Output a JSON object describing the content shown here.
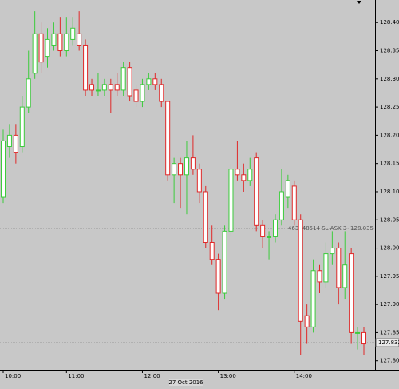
{
  "chart_data": {
    "type": "candlestick",
    "categories": [
      "10:00",
      null,
      null,
      null,
      null,
      null,
      null,
      null,
      null,
      null,
      "11:00",
      null,
      null,
      null,
      null,
      null,
      null,
      null,
      null,
      null,
      null,
      null,
      "12:00",
      null,
      null,
      null,
      null,
      null,
      null,
      null,
      null,
      null,
      null,
      null,
      "13:00",
      null,
      null,
      null,
      null,
      null,
      null,
      null,
      null,
      null,
      null,
      null,
      "14:00",
      null,
      null,
      null,
      null,
      null,
      null,
      null,
      null,
      null,
      null,
      null
    ],
    "open": [
      128.09,
      128.18,
      128.2,
      128.18,
      128.25,
      128.31,
      128.38,
      128.34,
      128.36,
      128.38,
      128.35,
      128.37,
      128.38,
      128.36,
      128.29,
      128.28,
      128.28,
      128.29,
      128.29,
      128.28,
      128.32,
      128.28,
      128.26,
      128.29,
      128.3,
      128.29,
      128.26,
      128.13,
      128.15,
      128.13,
      128.16,
      128.14,
      128.1,
      128.01,
      127.98,
      127.92,
      128.03,
      128.14,
      128.13,
      128.12,
      128.16,
      128.04,
      128.02,
      128.02,
      128.05,
      128.09,
      128.11,
      128.05,
      127.88,
      127.86,
      127.96,
      127.94,
      127.99,
      128.0,
      127.93,
      127.99,
      127.85,
      127.85
    ],
    "high": [
      128.21,
      128.22,
      128.22,
      128.27,
      128.35,
      128.42,
      128.4,
      128.39,
      128.4,
      128.41,
      128.41,
      128.41,
      128.42,
      128.37,
      128.3,
      128.31,
      128.3,
      128.3,
      128.31,
      128.33,
      128.33,
      128.29,
      128.3,
      128.31,
      128.31,
      128.3,
      128.26,
      128.16,
      128.16,
      128.19,
      128.2,
      128.15,
      128.11,
      128.04,
      127.99,
      128.04,
      128.15,
      128.19,
      128.15,
      128.16,
      128.17,
      128.05,
      128.03,
      128.06,
      128.14,
      128.13,
      128.12,
      128.06,
      127.9,
      127.98,
      127.97,
      128.01,
      128.03,
      128.01,
      128.03,
      128.0,
      127.86,
      127.86
    ],
    "low": [
      128.08,
      128.16,
      128.15,
      128.17,
      128.24,
      128.3,
      128.31,
      128.32,
      128.35,
      128.34,
      128.34,
      128.36,
      128.35,
      128.27,
      128.27,
      128.27,
      128.27,
      128.24,
      128.27,
      128.27,
      128.26,
      128.25,
      128.25,
      128.28,
      128.28,
      128.25,
      128.12,
      128.08,
      128.07,
      128.06,
      128.13,
      128.08,
      128.0,
      127.97,
      127.89,
      127.91,
      128.02,
      128.12,
      128.1,
      128.11,
      128.03,
      128.0,
      127.98,
      128.01,
      128.04,
      128.07,
      128.04,
      127.81,
      127.83,
      127.85,
      127.92,
      127.93,
      127.97,
      127.9,
      127.91,
      127.83,
      127.82,
      127.81
    ],
    "close": [
      128.19,
      128.2,
      128.17,
      128.25,
      128.3,
      128.38,
      128.33,
      128.37,
      128.38,
      128.35,
      128.38,
      128.39,
      128.36,
      128.28,
      128.28,
      128.28,
      128.29,
      128.28,
      128.28,
      128.32,
      128.27,
      128.26,
      128.29,
      128.3,
      128.29,
      128.26,
      128.13,
      128.15,
      128.13,
      128.16,
      128.14,
      128.1,
      128.01,
      127.98,
      127.92,
      128.03,
      128.14,
      128.13,
      128.12,
      128.14,
      128.04,
      128.02,
      128.02,
      128.05,
      128.1,
      128.12,
      128.05,
      127.87,
      127.86,
      127.96,
      127.94,
      127.99,
      128.0,
      127.93,
      127.97,
      127.85,
      127.85,
      127.83
    ],
    "up_color": "#3ccc3c",
    "down_color": "#e02828",
    "ylim": [
      127.784,
      128.44
    ],
    "yticks": [
      {
        "value": 127.8,
        "label": "127.80"
      },
      {
        "value": 127.85,
        "label": "127.85"
      },
      {
        "value": 127.9,
        "label": "127.90"
      },
      {
        "value": 127.95,
        "label": "127.95"
      },
      {
        "value": 128.0,
        "label": "128.00"
      },
      {
        "value": 128.05,
        "label": "128.05"
      },
      {
        "value": 128.1,
        "label": "128.10"
      },
      {
        "value": 128.15,
        "label": "128.15"
      },
      {
        "value": 128.2,
        "label": "128.20"
      },
      {
        "value": 128.25,
        "label": "128.25"
      },
      {
        "value": 128.3,
        "label": "128.30"
      },
      {
        "value": 128.35,
        "label": "128.35"
      },
      {
        "value": 128.4,
        "label": "128.40"
      }
    ],
    "date_label": "27 Oct 2016",
    "order_line": {
      "value": 128.035,
      "label": "463948514 SL ASK 3- 128.035"
    },
    "price_line": 127.832
  }
}
